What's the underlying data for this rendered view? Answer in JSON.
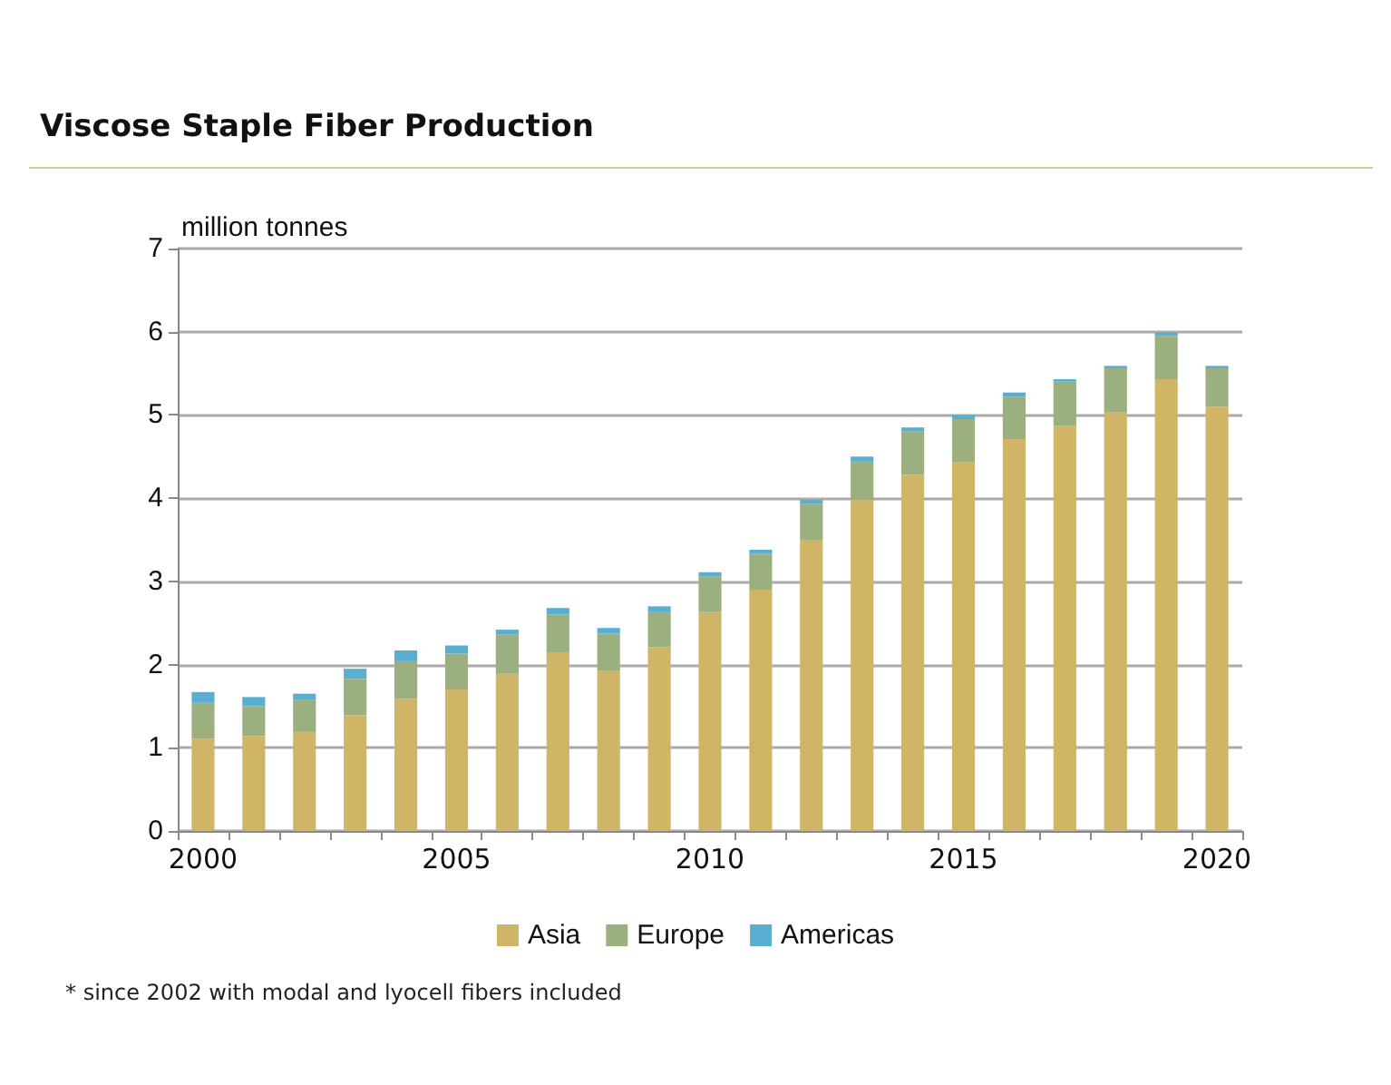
{
  "chart_data": {
    "type": "bar",
    "title": "Viscose Staple Fiber Production",
    "ylabel": "million tonnes",
    "categories": [
      "2000",
      null,
      null,
      null,
      null,
      "2005",
      null,
      null,
      null,
      null,
      "2010",
      null,
      null,
      null,
      null,
      "2015",
      null,
      null,
      null,
      null,
      "2020"
    ],
    "stacked": true,
    "series": [
      {
        "name": "Asia",
        "color": "#cfb565",
        "values": [
          1.11,
          1.14,
          1.19,
          1.39,
          1.59,
          1.7,
          1.89,
          2.14,
          1.93,
          2.21,
          2.63,
          2.9,
          3.5,
          3.98,
          4.28,
          4.43,
          4.71,
          4.87,
          5.03,
          5.43,
          5.1
        ]
      },
      {
        "name": "Europe",
        "color": "#9caf7e",
        "values": [
          0.43,
          0.36,
          0.39,
          0.44,
          0.45,
          0.43,
          0.47,
          0.46,
          0.44,
          0.42,
          0.43,
          0.43,
          0.43,
          0.46,
          0.52,
          0.52,
          0.51,
          0.53,
          0.53,
          0.52,
          0.46
        ]
      },
      {
        "name": "Americas",
        "color": "#5aafd0",
        "values": [
          0.13,
          0.11,
          0.07,
          0.12,
          0.13,
          0.1,
          0.06,
          0.08,
          0.07,
          0.07,
          0.05,
          0.05,
          0.05,
          0.06,
          0.05,
          0.05,
          0.05,
          0.03,
          0.03,
          0.04,
          0.03
        ]
      }
    ],
    "ylim": [
      0,
      7
    ],
    "yticks": [
      0,
      1,
      2,
      3,
      4,
      5,
      6,
      7
    ],
    "grid": "y",
    "legend": "bottom",
    "annotations": [
      "* since 2002 with modal and lyocell fibers included"
    ]
  }
}
